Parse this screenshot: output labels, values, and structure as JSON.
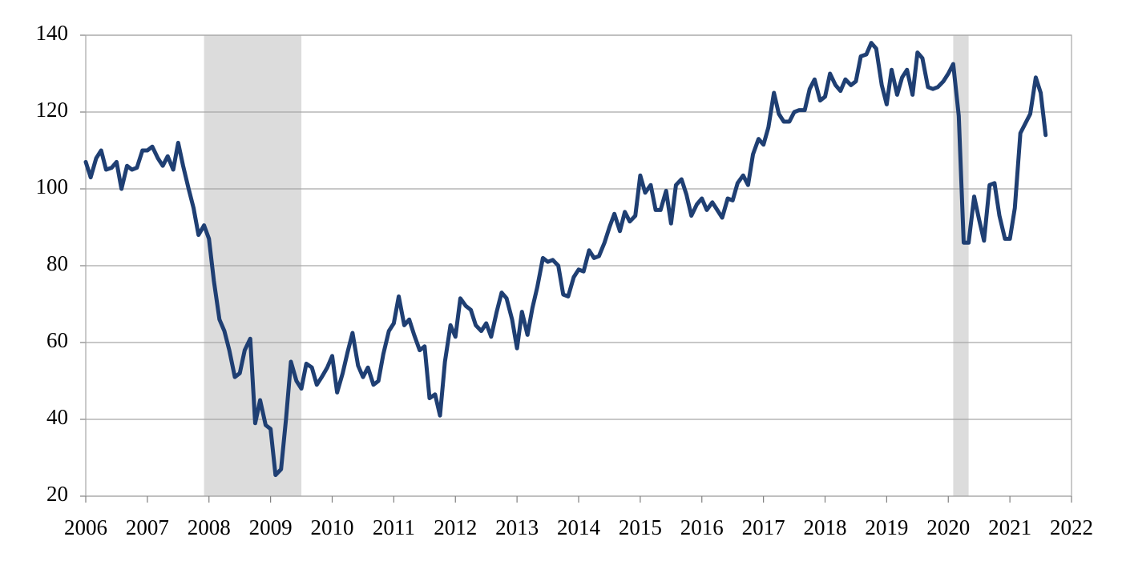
{
  "chart_data": {
    "type": "line",
    "xlim": [
      2006,
      2022
    ],
    "xticks": [
      2006,
      2007,
      2008,
      2009,
      2010,
      2011,
      2012,
      2013,
      2014,
      2015,
      2016,
      2017,
      2018,
      2019,
      2020,
      2021,
      2022
    ],
    "ylim": [
      20,
      140
    ],
    "yticks": [
      20,
      40,
      60,
      80,
      100,
      120,
      140
    ],
    "grid": true,
    "shaded_periods": [
      [
        2007.92,
        2009.5
      ],
      [
        2020.08,
        2020.33
      ]
    ],
    "shade_color": "#dcdcdc",
    "series": [
      {
        "color": "#1f3f73",
        "x": [
          2006,
          2006.08,
          2006.17,
          2006.25,
          2006.33,
          2006.42,
          2006.5,
          2006.58,
          2006.67,
          2006.75,
          2006.83,
          2006.92,
          2007,
          2007.08,
          2007.17,
          2007.25,
          2007.33,
          2007.42,
          2007.5,
          2007.58,
          2007.67,
          2007.75,
          2007.83,
          2007.92,
          2008,
          2008.08,
          2008.17,
          2008.25,
          2008.33,
          2008.42,
          2008.5,
          2008.58,
          2008.67,
          2008.75,
          2008.83,
          2008.92,
          2009,
          2009.08,
          2009.17,
          2009.25,
          2009.33,
          2009.42,
          2009.5,
          2009.58,
          2009.67,
          2009.75,
          2009.83,
          2009.92,
          2010,
          2010.08,
          2010.17,
          2010.25,
          2010.33,
          2010.42,
          2010.5,
          2010.58,
          2010.67,
          2010.75,
          2010.83,
          2010.92,
          2011,
          2011.08,
          2011.17,
          2011.25,
          2011.33,
          2011.42,
          2011.5,
          2011.58,
          2011.67,
          2011.75,
          2011.83,
          2011.92,
          2012,
          2012.08,
          2012.17,
          2012.25,
          2012.33,
          2012.42,
          2012.5,
          2012.58,
          2012.67,
          2012.75,
          2012.83,
          2012.92,
          2013,
          2013.08,
          2013.17,
          2013.25,
          2013.33,
          2013.42,
          2013.5,
          2013.58,
          2013.67,
          2013.75,
          2013.83,
          2013.92,
          2014,
          2014.08,
          2014.17,
          2014.25,
          2014.33,
          2014.42,
          2014.5,
          2014.58,
          2014.67,
          2014.75,
          2014.83,
          2014.92,
          2015,
          2015.08,
          2015.17,
          2015.25,
          2015.33,
          2015.42,
          2015.5,
          2015.58,
          2015.67,
          2015.75,
          2015.83,
          2015.92,
          2016,
          2016.08,
          2016.17,
          2016.25,
          2016.33,
          2016.42,
          2016.5,
          2016.58,
          2016.67,
          2016.75,
          2016.83,
          2016.92,
          2017,
          2017.08,
          2017.17,
          2017.25,
          2017.33,
          2017.42,
          2017.5,
          2017.58,
          2017.67,
          2017.75,
          2017.83,
          2017.92,
          2018,
          2018.08,
          2018.17,
          2018.25,
          2018.33,
          2018.42,
          2018.5,
          2018.58,
          2018.67,
          2018.75,
          2018.83,
          2018.92,
          2019,
          2019.08,
          2019.17,
          2019.25,
          2019.33,
          2019.42,
          2019.5,
          2019.58,
          2019.67,
          2019.75,
          2019.83,
          2019.92,
          2020,
          2020.08,
          2020.17,
          2020.25,
          2020.33,
          2020.42,
          2020.5,
          2020.58,
          2020.67,
          2020.75,
          2020.83,
          2020.92,
          2021,
          2021.08,
          2021.17,
          2021.25,
          2021.33,
          2021.42,
          2021.5,
          2021.58
        ],
        "values": [
          107,
          103,
          108,
          110,
          105,
          105.5,
          107,
          100,
          106,
          105,
          105.5,
          110,
          110,
          111,
          108,
          106,
          108.5,
          105,
          112,
          106,
          100,
          95,
          88,
          90.5,
          87,
          76,
          66,
          63,
          58,
          51,
          52,
          58,
          61,
          39,
          45,
          38.5,
          37.5,
          25.5,
          27,
          40,
          55,
          50,
          48,
          54.5,
          53.5,
          49,
          51,
          53.5,
          56.5,
          47,
          52,
          57.5,
          62.5,
          54,
          51,
          53.5,
          49,
          50,
          57,
          63,
          65,
          72,
          64.5,
          66,
          62,
          58,
          59,
          45.5,
          46.5,
          41,
          55,
          64.5,
          61.5,
          71.5,
          69.5,
          68.5,
          64.5,
          63,
          65,
          61.5,
          68,
          73,
          71.5,
          66,
          58.5,
          68,
          62,
          69,
          74.5,
          82,
          81,
          81.5,
          80,
          72.5,
          72,
          77,
          79,
          78.5,
          84,
          82,
          82.5,
          86,
          90,
          93.5,
          89,
          94,
          91.5,
          93,
          103.5,
          99,
          101,
          94.5,
          94.5,
          99.5,
          91,
          101,
          102.5,
          98.5,
          93,
          96,
          97.5,
          94.5,
          96.5,
          94.5,
          92.5,
          97.5,
          97,
          101.5,
          103.5,
          101,
          109,
          113,
          111.5,
          116,
          125,
          119.5,
          117.5,
          117.5,
          120,
          120.5,
          120.5,
          126,
          128.5,
          123,
          124,
          130,
          127,
          125.5,
          128.5,
          127,
          128,
          134.5,
          135,
          138,
          136.5,
          127,
          122,
          131,
          124.5,
          129,
          131,
          124.5,
          135.5,
          134,
          126.5,
          126,
          126.5,
          128,
          130,
          132.5,
          119,
          86,
          86,
          98,
          92,
          86.5,
          101,
          101.5,
          93,
          87,
          87,
          95,
          114.5,
          117,
          119.5,
          129,
          125,
          114
        ]
      }
    ]
  }
}
